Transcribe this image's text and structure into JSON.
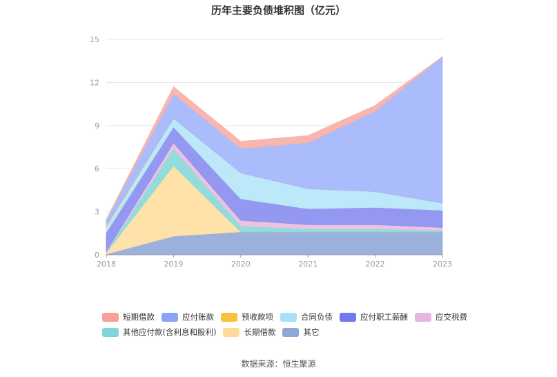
{
  "title": "历年主要负债堆积图（亿元）",
  "source": "数据来源：恒生聚源",
  "chart_data": {
    "type": "area",
    "stacked": true,
    "x": [
      "2018",
      "2019",
      "2020",
      "2021",
      "2022",
      "2023"
    ],
    "ylim": [
      0,
      15
    ],
    "yticks": [
      0,
      3,
      6,
      9,
      12,
      15
    ],
    "grid": true,
    "legend_position": "bottom",
    "series": [
      {
        "name": "其它",
        "color": "#93aad8",
        "values": [
          0.05,
          1.3,
          1.6,
          1.6,
          1.6,
          1.6
        ]
      },
      {
        "name": "长期借款",
        "color": "#ffdea3",
        "values": [
          0.1,
          4.9,
          0.0,
          0.0,
          0.0,
          0.0
        ]
      },
      {
        "name": "其他应付款(含利息和股利)",
        "color": "#8ad9d9",
        "values": [
          0.05,
          1.2,
          0.4,
          0.2,
          0.2,
          0.1
        ]
      },
      {
        "name": "应交税费",
        "color": "#e8bde2",
        "values": [
          0.05,
          0.4,
          0.4,
          0.3,
          0.3,
          0.2
        ]
      },
      {
        "name": "应付职工薪酬",
        "color": "#8b8ff0",
        "values": [
          1.3,
          1.1,
          1.5,
          1.1,
          1.2,
          1.2
        ]
      },
      {
        "name": "合同负债",
        "color": "#b7e6fa",
        "values": [
          0.4,
          0.6,
          1.8,
          1.4,
          1.1,
          0.5
        ]
      },
      {
        "name": "预收款项",
        "color": "#fac54a",
        "values": [
          0.1,
          0.0,
          0.0,
          0.0,
          0.0,
          0.0
        ]
      },
      {
        "name": "应付账款",
        "color": "#a3b6fc",
        "values": [
          0.4,
          1.7,
          1.7,
          3.2,
          5.6,
          10.2
        ]
      },
      {
        "name": "短期借款",
        "color": "#f7b0a8",
        "values": [
          0.0,
          0.5,
          0.5,
          0.5,
          0.4,
          0.0
        ]
      }
    ]
  },
  "legend": {
    "row1": [
      {
        "label": "短期借款",
        "color": "#f7a098"
      },
      {
        "label": "应付账款",
        "color": "#8aa3f7"
      },
      {
        "label": "预收款项",
        "color": "#f9c23c"
      },
      {
        "label": "合同负债",
        "color": "#a8e0f7"
      },
      {
        "label": "应付职工薪酬",
        "color": "#7478ee"
      },
      {
        "label": "应交税费",
        "color": "#e8b5e0"
      }
    ],
    "row2": [
      {
        "label": "其他应付款(含利息和股利)",
        "color": "#7fd6d6"
      },
      {
        "label": "长期借款",
        "color": "#ffd996"
      },
      {
        "label": "其它",
        "color": "#8ea8d6"
      }
    ]
  }
}
